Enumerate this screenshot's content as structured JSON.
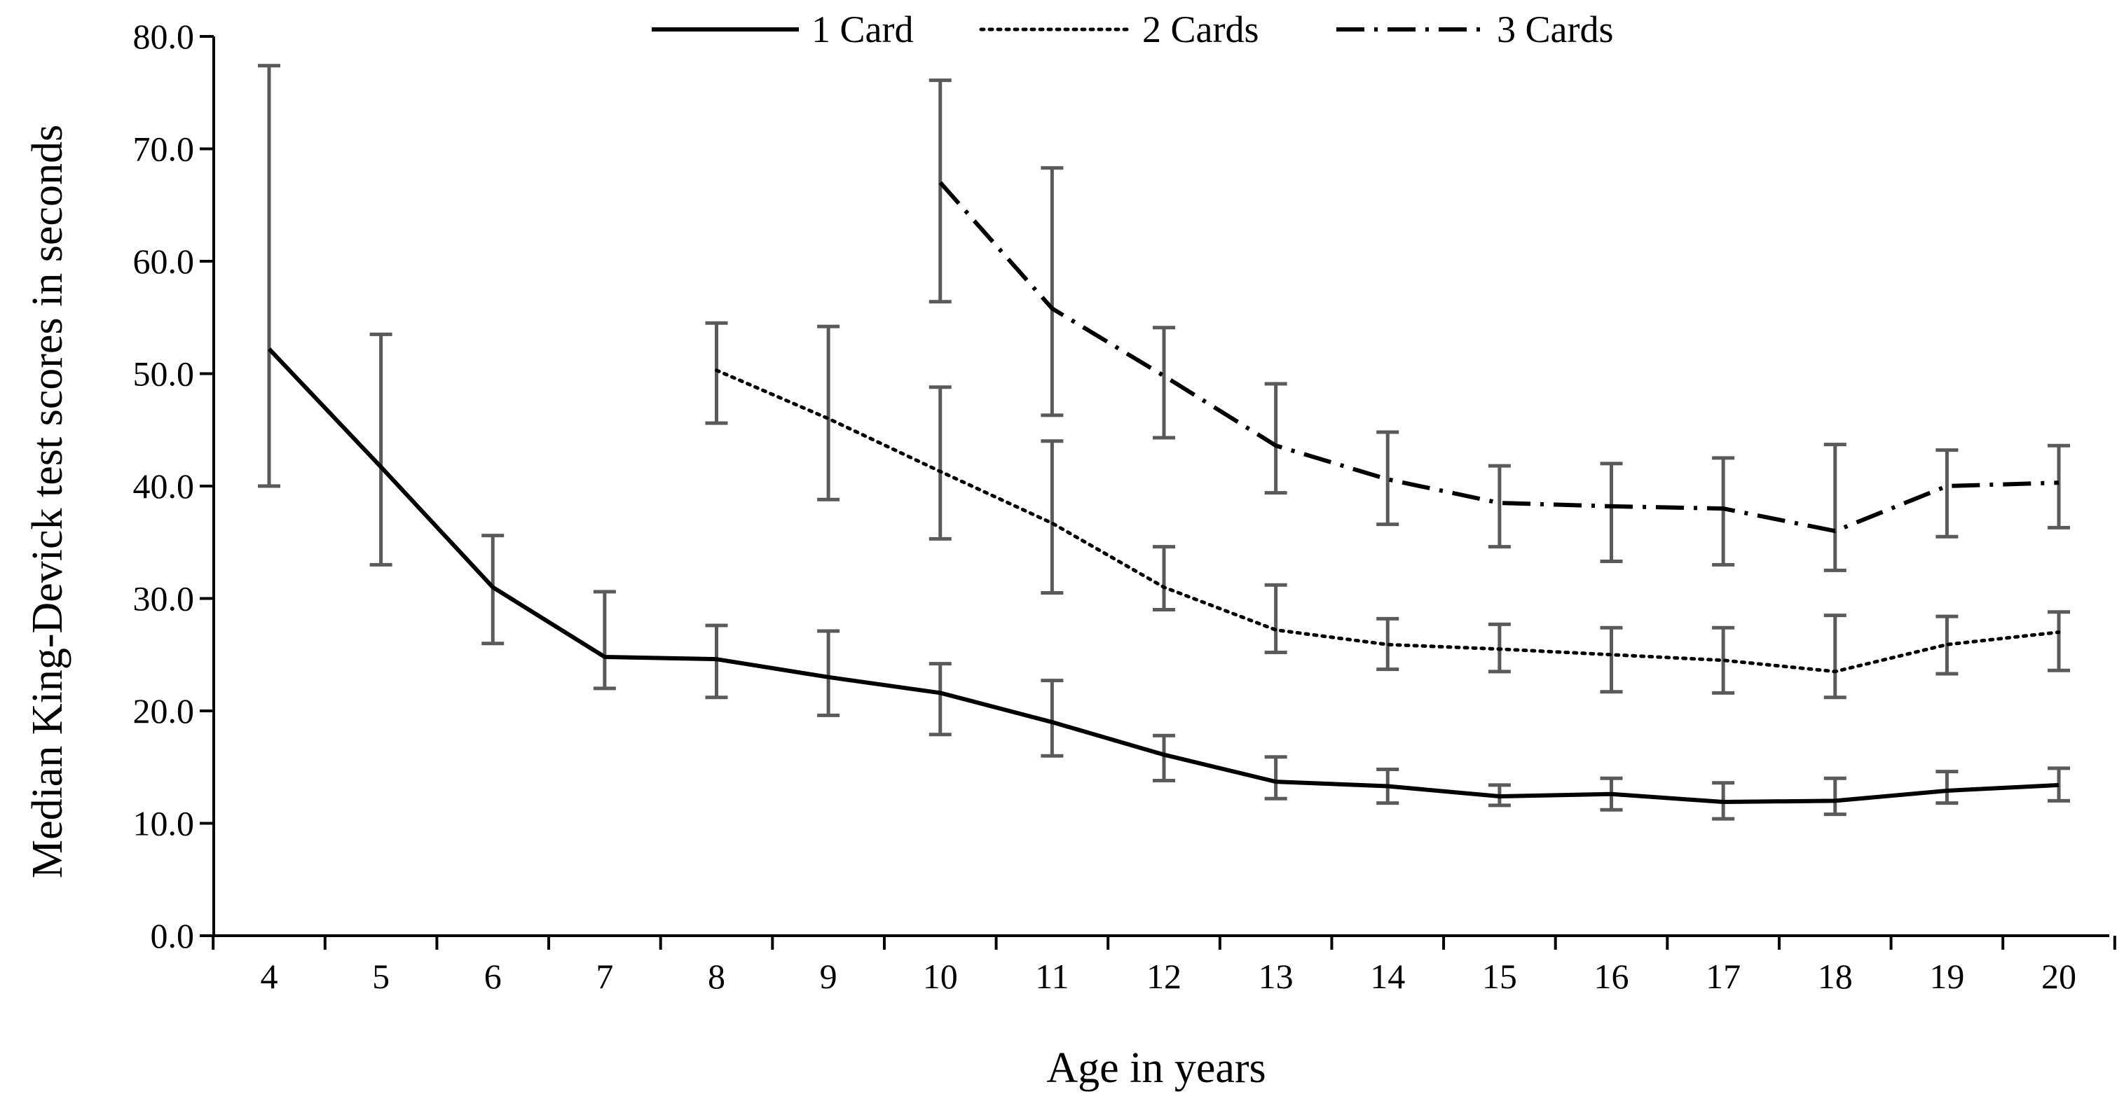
{
  "chart_data": {
    "type": "line",
    "title": "",
    "xlabel": "Age in years",
    "ylabel": "Median King-Devick test scores in seconds",
    "categories": [
      "4",
      "5",
      "6",
      "7",
      "8",
      "9",
      "10",
      "11",
      "12",
      "13",
      "14",
      "15",
      "16",
      "17",
      "18",
      "19",
      "20"
    ],
    "y_tick_labels": [
      "0.0",
      "10.0",
      "20.0",
      "30.0",
      "40.0",
      "50.0",
      "60.0",
      "70.0",
      "80.0"
    ],
    "ylim": [
      0,
      80
    ],
    "grid": false,
    "legend_position": "top",
    "series": [
      {
        "name": "1 Card",
        "style": "solid",
        "x": [
          4,
          5,
          6,
          7,
          8,
          9,
          10,
          11,
          12,
          13,
          14,
          15,
          16,
          17,
          18,
          19,
          20
        ],
        "values": [
          52.2,
          41.7,
          31.0,
          24.8,
          24.6,
          23.0,
          21.6,
          19.0,
          16.1,
          13.7,
          13.3,
          12.4,
          12.6,
          11.9,
          12.0,
          12.9,
          13.4
        ],
        "err_low": [
          40.0,
          33.0,
          26.0,
          22.0,
          21.2,
          19.6,
          17.9,
          16.0,
          13.8,
          12.2,
          11.8,
          11.6,
          11.2,
          10.4,
          10.8,
          11.8,
          12.0
        ],
        "err_high": [
          77.4,
          53.5,
          35.6,
          30.6,
          27.6,
          27.1,
          24.2,
          22.7,
          17.8,
          15.9,
          14.8,
          13.4,
          14.0,
          13.6,
          14.0,
          14.6,
          14.9
        ]
      },
      {
        "name": "2 Cards",
        "style": "dotted",
        "x": [
          8,
          9,
          10,
          11,
          12,
          13,
          14,
          15,
          16,
          17,
          18,
          19,
          20
        ],
        "values": [
          50.3,
          46.0,
          41.3,
          36.7,
          31.0,
          27.2,
          25.9,
          25.5,
          25.0,
          24.5,
          23.5,
          25.9,
          27.0
        ],
        "err_low": [
          45.6,
          38.8,
          35.3,
          30.5,
          29.0,
          25.2,
          23.7,
          23.5,
          21.7,
          21.6,
          21.2,
          23.3,
          23.6
        ],
        "err_high": [
          54.5,
          54.2,
          48.8,
          44.0,
          34.6,
          31.2,
          28.2,
          27.7,
          27.4,
          27.4,
          28.5,
          28.4,
          28.8
        ]
      },
      {
        "name": "3 Cards",
        "style": "dash-dot",
        "x": [
          10,
          11,
          12,
          13,
          14,
          15,
          16,
          17,
          18,
          19,
          20
        ],
        "values": [
          67.0,
          55.8,
          49.8,
          43.6,
          40.6,
          38.5,
          38.2,
          38.0,
          36.0,
          40.0,
          40.3
        ],
        "err_low": [
          56.4,
          46.3,
          44.3,
          39.4,
          36.6,
          34.6,
          33.3,
          33.0,
          32.5,
          35.5,
          36.3
        ],
        "err_high": [
          76.1,
          68.3,
          54.1,
          49.1,
          44.8,
          41.8,
          42.0,
          42.5,
          43.7,
          43.2,
          43.6
        ]
      }
    ],
    "colors": {
      "line": "#000000",
      "error_bar": "#5a5a5a",
      "axis": "#000000"
    }
  }
}
